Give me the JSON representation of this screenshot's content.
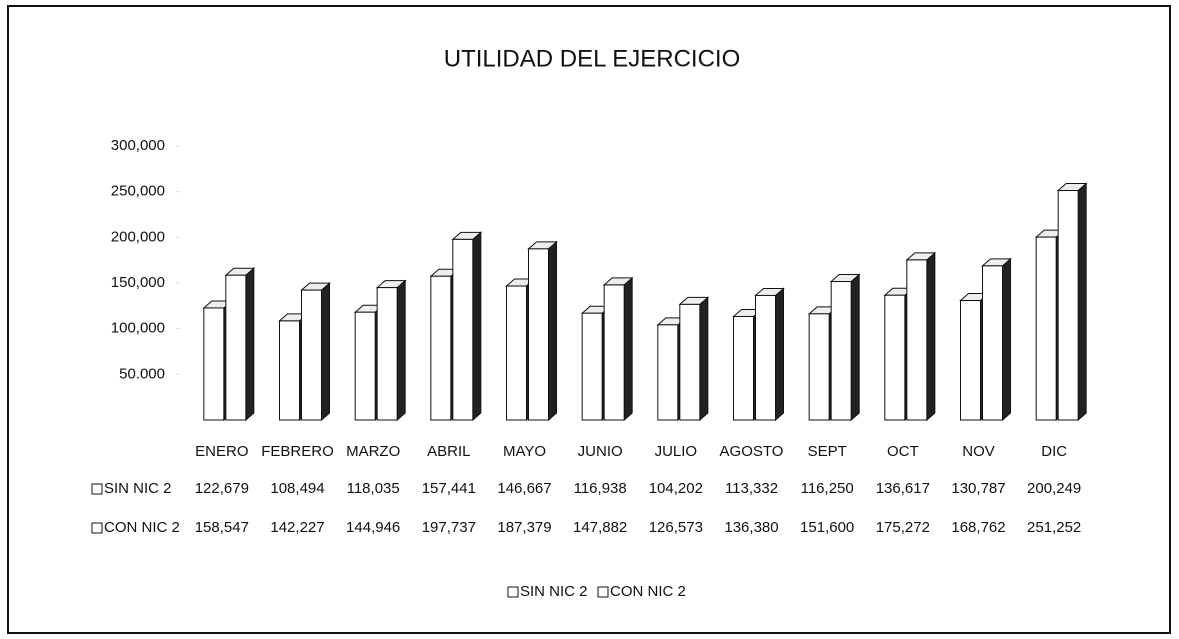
{
  "chart_data": {
    "type": "bar3d",
    "title": "UTILIDAD DEL EJERCICIO",
    "categories": [
      "ENERO",
      "FEBRERO",
      "MARZO",
      "ABRIL",
      "MAYO",
      "JUNIO",
      "JULIO",
      "AGOSTO",
      "SEPT",
      "OCT",
      "NOV",
      "DIC"
    ],
    "series": [
      {
        "name": "SIN NIC 2",
        "color": "#ffffff",
        "values": [
          122679,
          108494,
          118035,
          157441,
          146667,
          116938,
          104202,
          113332,
          116250,
          136617,
          130787,
          200249
        ],
        "value_labels": [
          "122,679",
          "108,494",
          "118,035",
          "157,441",
          "146,667",
          "116,938",
          "104,202",
          "113,332",
          "116,250",
          "136,617",
          "130,787",
          "200,249"
        ]
      },
      {
        "name": "CON NIC 2",
        "color": "#ffffff",
        "values": [
          158547,
          142227,
          144946,
          197737,
          187379,
          147882,
          126573,
          136380,
          151600,
          175272,
          168762,
          251252
        ],
        "value_labels": [
          "158,547",
          "142,227",
          "144,946",
          "197,737",
          "187,379",
          "147,882",
          "126,573",
          "136,380",
          "151,600",
          "175,272",
          "168,762",
          "251,252"
        ]
      }
    ],
    "ylim": [
      0,
      300000
    ],
    "yticks": [
      {
        "value": 50000,
        "label": "50.000"
      },
      {
        "value": 100000,
        "label": "100,000"
      },
      {
        "value": 150000,
        "label": "150,000"
      },
      {
        "value": 200000,
        "label": "200,000"
      },
      {
        "value": 250000,
        "label": "250,000"
      },
      {
        "value": 300000,
        "label": "300,000"
      }
    ],
    "legend": "bottom"
  }
}
